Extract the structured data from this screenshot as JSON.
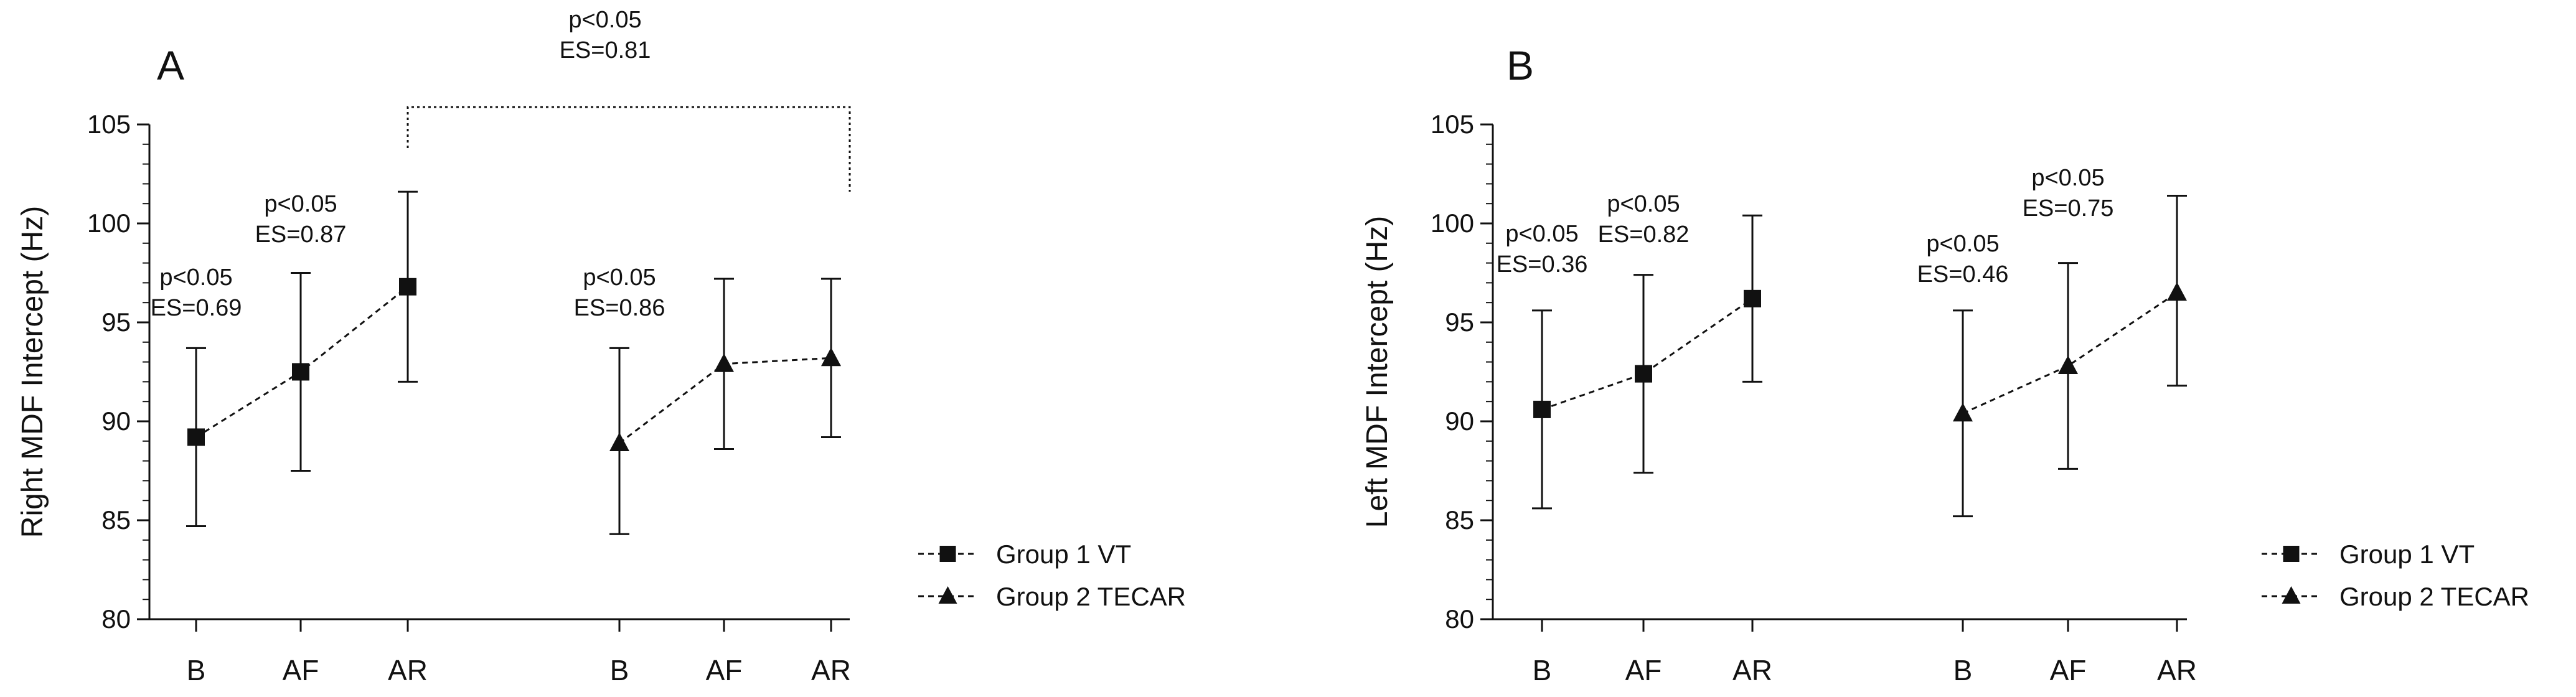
{
  "chart_data": [
    {
      "type": "line",
      "panel": "A",
      "ylabel": "Right MDF Intercept (Hz)",
      "ylim": [
        80,
        105
      ],
      "yticks": [
        "80",
        "85",
        "90",
        "95",
        "100",
        "105"
      ],
      "series": [
        {
          "name": "Group 1 VT",
          "marker": "square",
          "categories": [
            "B",
            "AF",
            "AR"
          ],
          "values": [
            89.2,
            92.5,
            96.8
          ],
          "err_low": [
            84.7,
            87.5,
            92.0
          ],
          "err_high": [
            93.7,
            97.5,
            101.6
          ],
          "annotations": [
            {
              "category": "B",
              "p": "p<0.05",
              "es": "ES=0.69"
            },
            {
              "category": "AF",
              "p": "p<0.05",
              "es": "ES=0.87"
            }
          ]
        },
        {
          "name": "Group 2 TECAR",
          "marker": "triangle",
          "categories": [
            "B",
            "AF",
            "AR"
          ],
          "values": [
            88.9,
            92.9,
            93.2
          ],
          "err_low": [
            84.3,
            88.6,
            89.2
          ],
          "err_high": [
            93.7,
            97.2,
            97.2
          ],
          "annotations": [
            {
              "category": "B",
              "p": "p<0.05",
              "es": "ES=0.86"
            }
          ]
        }
      ],
      "bracket": {
        "p": "p<0.05",
        "es": "ES=0.81"
      },
      "legend": [
        "Group 1 VT",
        "Group 2 TECAR"
      ]
    },
    {
      "type": "line",
      "panel": "B",
      "ylabel": "Left MDF Intercept (Hz)",
      "ylim": [
        80,
        105
      ],
      "yticks": [
        "80",
        "85",
        "90",
        "95",
        "100",
        "105"
      ],
      "series": [
        {
          "name": "Group 1 VT",
          "marker": "square",
          "categories": [
            "B",
            "AF",
            "AR"
          ],
          "values": [
            90.6,
            92.4,
            96.2
          ],
          "err_low": [
            85.6,
            87.4,
            92.0
          ],
          "err_high": [
            95.6,
            97.4,
            100.4
          ],
          "annotations": [
            {
              "category": "B",
              "p": "p<0.05",
              "es": "ES=0.36"
            },
            {
              "category": "AF",
              "p": "p<0.05",
              "es": "ES=0.82"
            }
          ]
        },
        {
          "name": "Group 2 TECAR",
          "marker": "triangle",
          "categories": [
            "B",
            "AF",
            "AR"
          ],
          "values": [
            90.4,
            92.8,
            96.5
          ],
          "err_low": [
            85.2,
            87.6,
            91.8
          ],
          "err_high": [
            95.6,
            98.0,
            101.4
          ],
          "annotations": [
            {
              "category": "B",
              "p": "p<0.05",
              "es": "ES=0.46"
            },
            {
              "category": "AF",
              "p": "p<0.05",
              "es": "ES=0.75"
            }
          ]
        }
      ],
      "legend": [
        "Group 1 VT",
        "Group 2 TECAR"
      ]
    }
  ]
}
